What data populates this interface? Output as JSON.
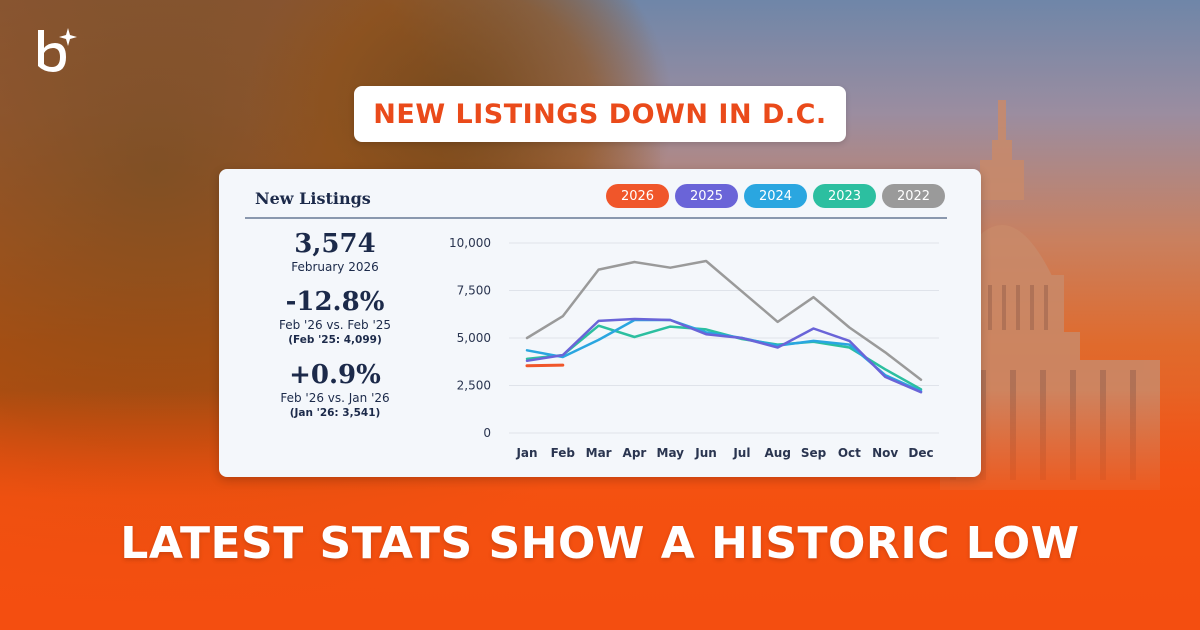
{
  "headline": "NEW LISTINGS DOWN IN D.C.",
  "footer": "LATEST STATS SHOW A HISTORIC LOW",
  "card": {
    "title": "New Listings",
    "stats": {
      "value": "3,574",
      "value_sub": "February 2026",
      "yoy_change": "-12.8%",
      "yoy_label": "Feb '26 vs. Feb '25",
      "yoy_prev": "(Feb '25: 4,099)",
      "mom_change": "+0.9%",
      "mom_label": "Feb '26 vs. Jan '26",
      "mom_prev": "(Jan '26: 3,541)"
    }
  },
  "chart_data": {
    "type": "line",
    "title": "New Listings",
    "x": [
      "Jan",
      "Feb",
      "Mar",
      "Apr",
      "May",
      "Jun",
      "Jul",
      "Aug",
      "Sep",
      "Oct",
      "Nov",
      "Dec"
    ],
    "ylim": [
      0,
      10000
    ],
    "yticks": [
      0,
      2500,
      5000,
      7500,
      10000
    ],
    "ytick_labels": [
      "0",
      "2,500",
      "5,000",
      "7,500",
      "10,000"
    ],
    "grid": true,
    "legend_position": "top-right",
    "series": [
      {
        "name": "2026",
        "color": "#f0562a",
        "values": [
          3541,
          3574,
          null,
          null,
          null,
          null,
          null,
          null,
          null,
          null,
          null,
          null
        ]
      },
      {
        "name": "2025",
        "color": "#6a64d8",
        "values": [
          3800,
          4099,
          5900,
          6000,
          5950,
          5200,
          5000,
          4500,
          5500,
          4850,
          2950,
          2150
        ]
      },
      {
        "name": "2024",
        "color": "#2aa6e0",
        "values": [
          4350,
          4000,
          4900,
          5950,
          5950,
          5300,
          5000,
          4600,
          4850,
          4650,
          3050,
          2200
        ]
      },
      {
        "name": "2023",
        "color": "#2cbfa0",
        "values": [
          3900,
          4100,
          5650,
          5050,
          5600,
          5450,
          4950,
          4650,
          4800,
          4500,
          3350,
          2300
        ]
      },
      {
        "name": "2022",
        "color": "#9a9a9a",
        "values": [
          5000,
          6150,
          8600,
          9000,
          8700,
          9050,
          7450,
          5850,
          7150,
          5550,
          4250,
          2800
        ]
      }
    ]
  }
}
